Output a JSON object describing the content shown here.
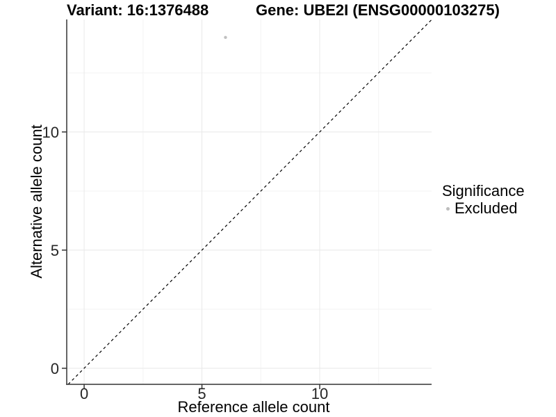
{
  "chart_data": {
    "type": "scatter",
    "title_variant": "Variant: 16:1376488",
    "title_gene": "Gene: UBE2I (ENSG00000103275)",
    "xlabel": "Reference allele count",
    "ylabel": "Alternative allele count",
    "xlim": [
      -0.74,
      14.75
    ],
    "ylim": [
      -0.68,
      14.76
    ],
    "x_ticks": [
      0,
      5,
      10
    ],
    "y_ticks": [
      0,
      5,
      10
    ],
    "x_minor_ticks": [
      2.5,
      7.5,
      12.5
    ],
    "y_minor_ticks": [
      2.5,
      7.5,
      12.5
    ],
    "grid": true,
    "series": [
      {
        "name": "Excluded",
        "color": "#c0c0c0",
        "points": [
          {
            "x": 6,
            "y": 14
          }
        ]
      }
    ],
    "identity_line": {
      "style": "dashed",
      "equation": "y = x",
      "color": "#000000"
    },
    "legend": {
      "position": "right",
      "title": "Significance",
      "items": [
        {
          "label": "Excluded",
          "color": "#bdbdbd",
          "marker": "circle"
        }
      ]
    },
    "colors": {
      "axis": "#333333",
      "tick_label": "#262626",
      "grid_major": "#e8e8e8",
      "grid_minor": "#f3f3f3",
      "background": "#ffffff"
    }
  }
}
